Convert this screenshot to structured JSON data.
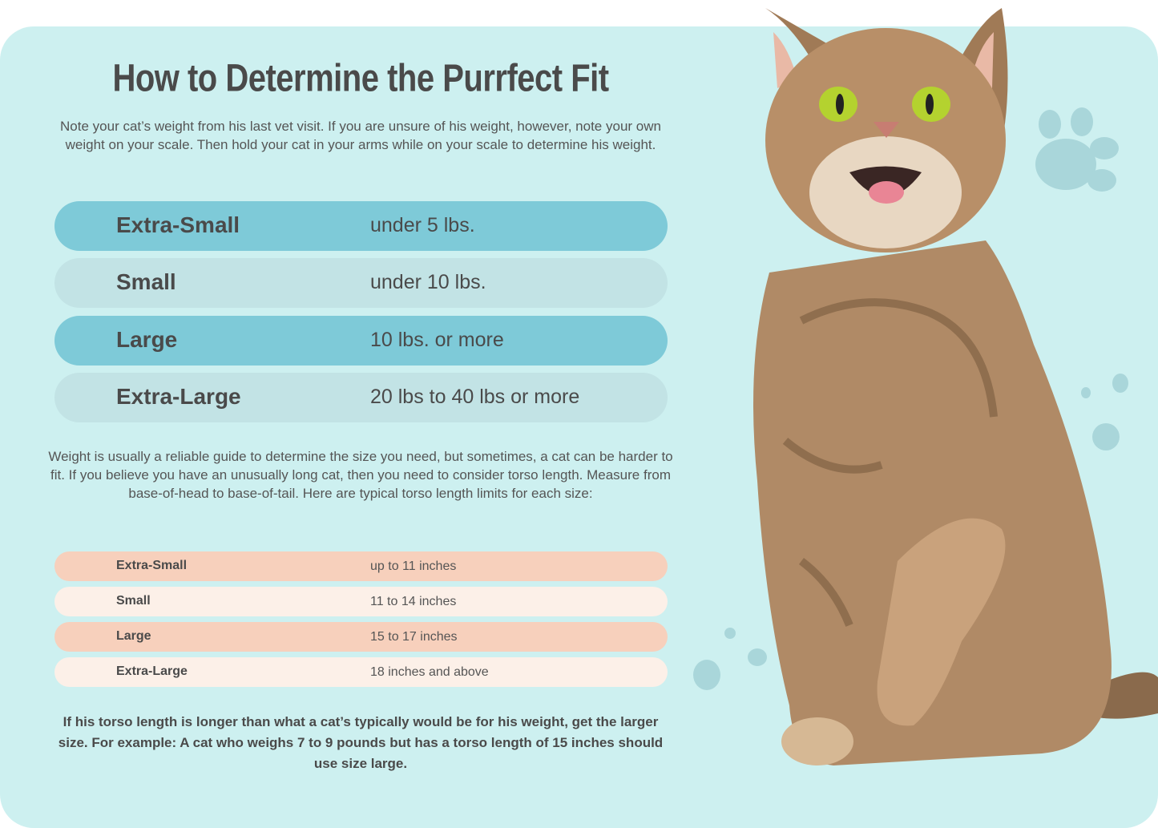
{
  "title": "How to Determine the Purrfect Fit",
  "intro": "Note your cat’s weight from his last vet visit. If you are unsure of his weight, however, note your own weight on your scale. Then hold your cat in your arms while on your scale to determine his weight.",
  "weight_table": [
    {
      "size": "Extra-Small",
      "weight": "under 5 lbs."
    },
    {
      "size": "Small",
      "weight": "under 10 lbs."
    },
    {
      "size": "Large",
      "weight": "10 lbs. or more"
    },
    {
      "size": "Extra-Large",
      "weight": "20 lbs to 40 lbs or more"
    }
  ],
  "torso_intro": "Weight is usually a reliable guide to determine the size you need, but sometimes, a cat can be harder to fit. If you believe you have an unusually long cat, then you need to consider torso length. Measure from base-of-head to base-of-tail. Here are typical torso length limits for each size:",
  "torso_table": [
    {
      "size": "Extra-Small",
      "length": "up to 11 inches"
    },
    {
      "size": "Small",
      "length": "11 to 14 inches"
    },
    {
      "size": "Large",
      "length": "15 to 17 inches"
    },
    {
      "size": "Extra-Large",
      "length": "18 inches and above"
    }
  ],
  "note": "If his torso length is longer than what a cat’s typically would be for his weight, get the larger size. For example: A cat who weighs 7 to 9 pounds but has a torso length of 15 inches should use size large.",
  "colors": {
    "background": "#cdf0f0",
    "weight_row_dark": "#7ecad8",
    "weight_row_light": "#c2e3e5",
    "torso_row_dark": "#f7d0bc",
    "torso_row_light": "#fcf0e8",
    "text": "#4a4a4a"
  },
  "image": "tabby-cat-photo"
}
